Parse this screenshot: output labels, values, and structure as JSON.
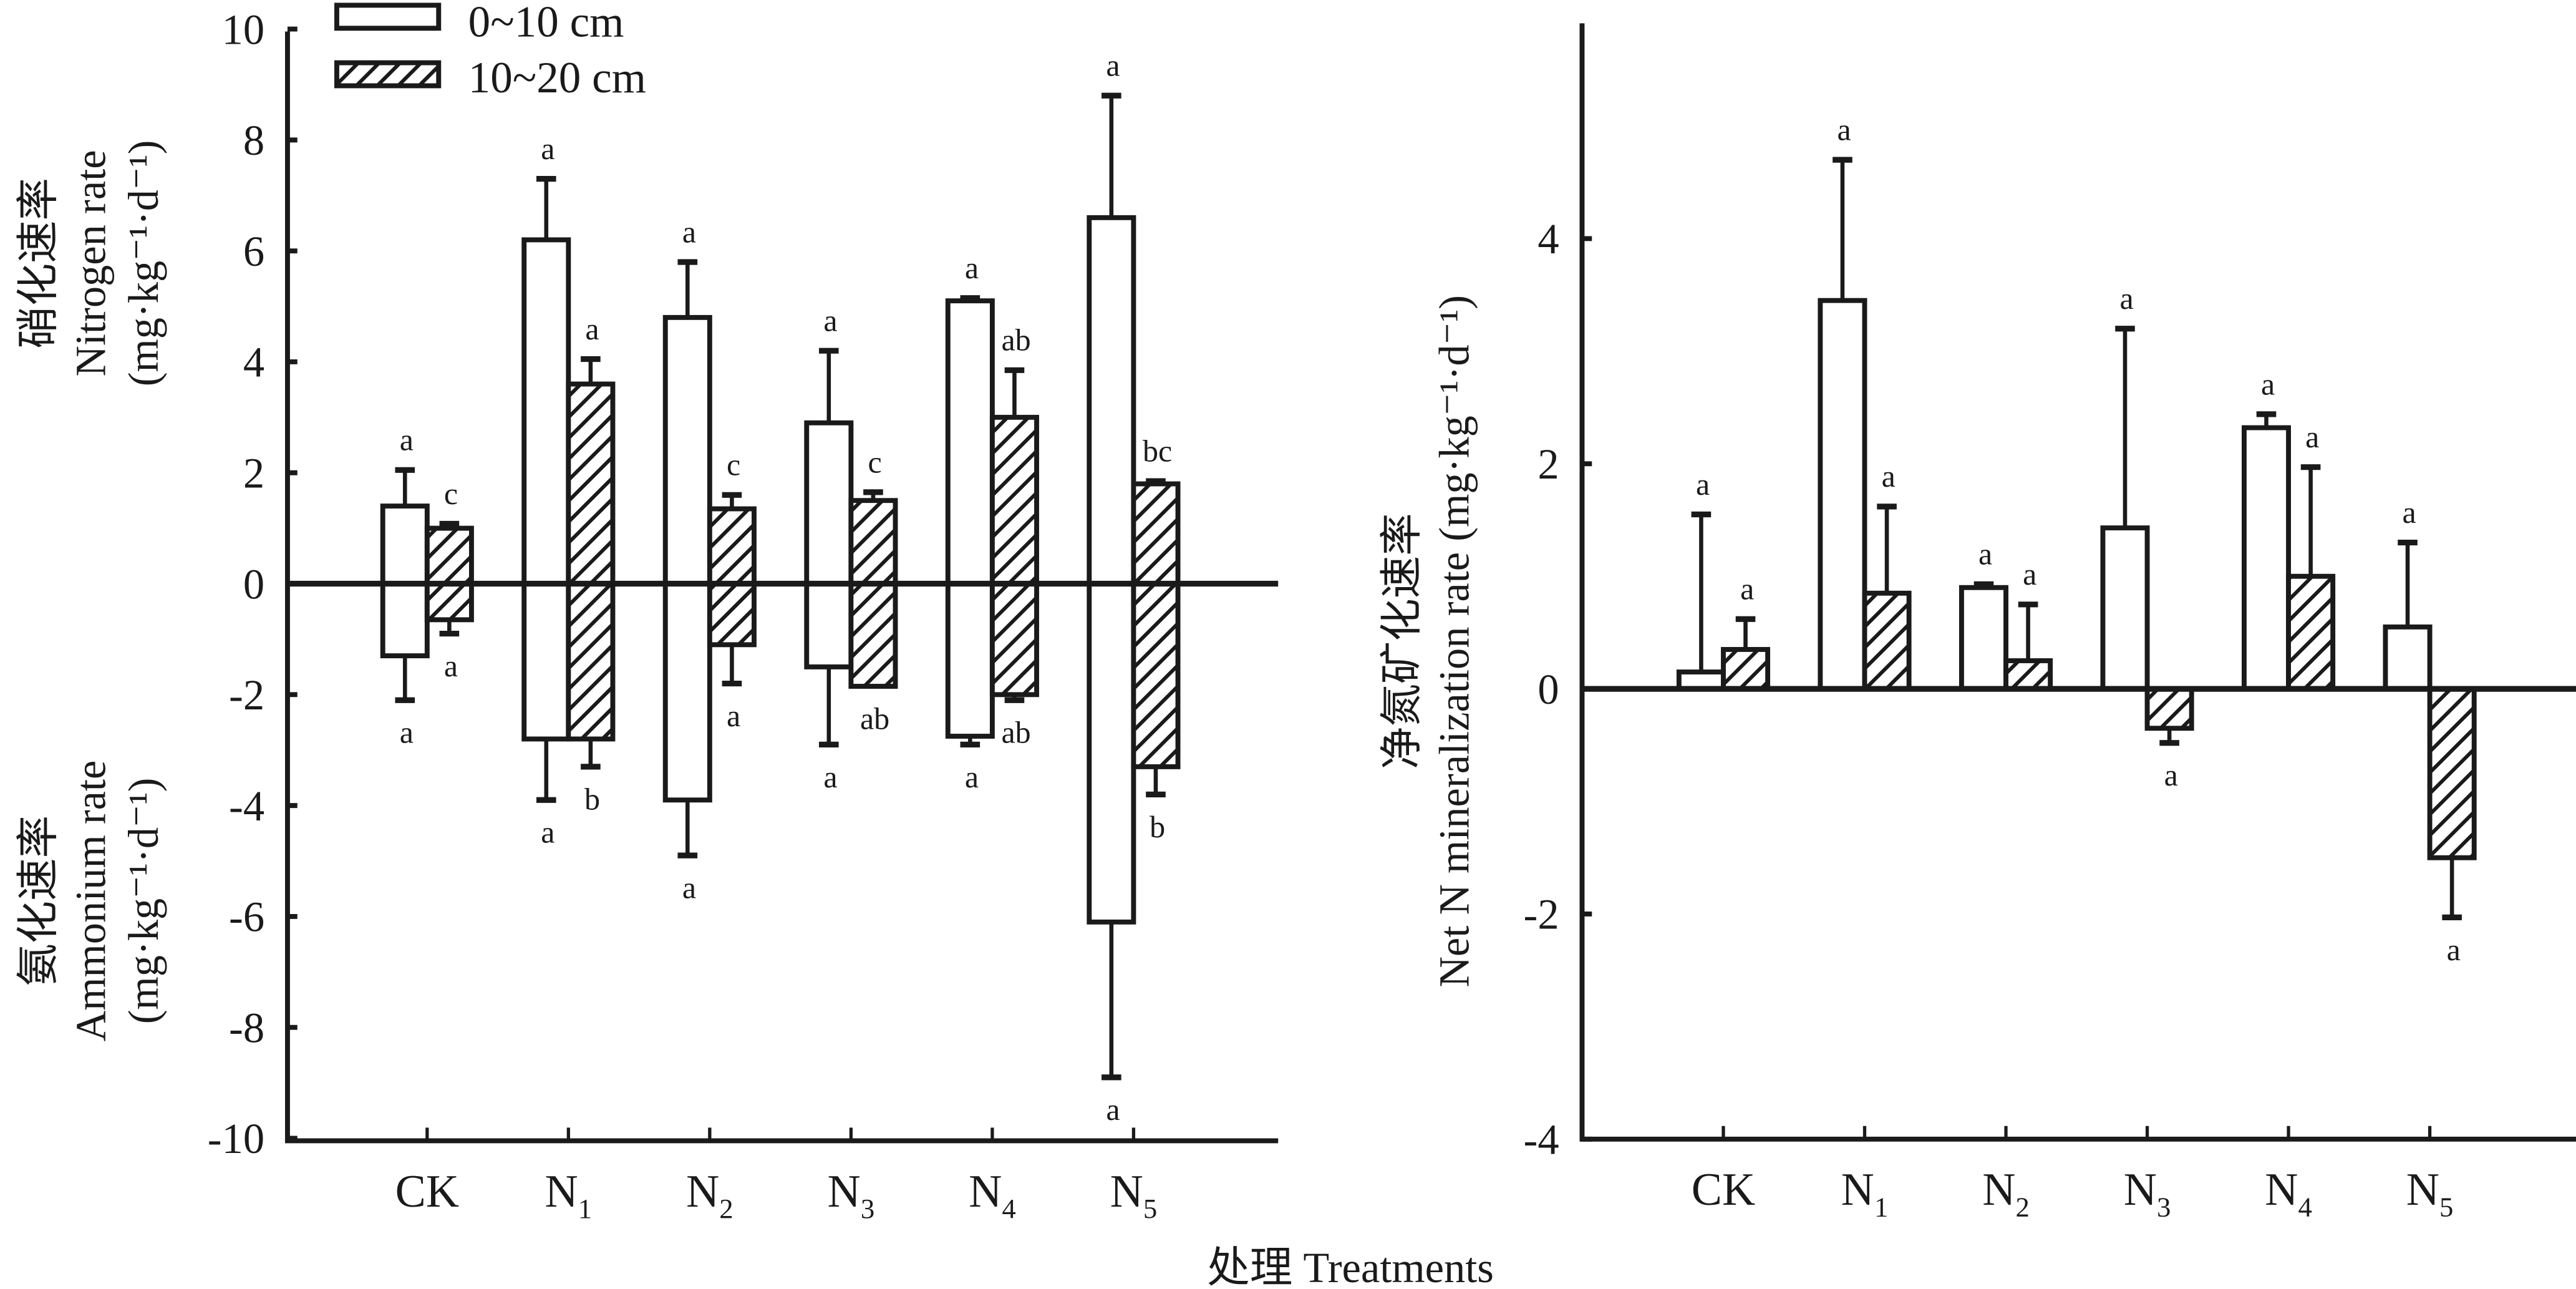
{
  "x_axis_title": "处理 Treatments",
  "legend": [
    {
      "label": "0~10 cm",
      "pattern": "open"
    },
    {
      "label": "10~20 cm",
      "pattern": "hatched"
    }
  ],
  "colors": {
    "ink": "#1a1a1a",
    "fill_open": "#ffffff"
  },
  "chart_data": [
    {
      "type": "bar",
      "title": "",
      "ylabel_top": [
        "硝化速率",
        "Nitrogen rate",
        "(mg·kg⁻¹·d⁻¹)"
      ],
      "ylabel_bottom": [
        "氨化速率",
        "Ammonium rate",
        "(mg·kg⁻¹·d⁻¹)"
      ],
      "xlabel": "处理 Treatments",
      "ylim": [
        -10,
        10
      ],
      "yticks": [
        10,
        8,
        6,
        4,
        2,
        0,
        -2,
        -4,
        -6,
        -8,
        -10
      ],
      "ytick_labels": [
        "10",
        "8",
        "6",
        "4",
        "2",
        "0",
        "-2",
        "-4",
        "-6",
        "-8",
        "-10"
      ],
      "categories": [
        "CK",
        "N1",
        "N2",
        "N3",
        "N4",
        "N5"
      ],
      "category_labels": [
        {
          "main": "CK",
          "sub": ""
        },
        {
          "main": "N",
          "sub": "1"
        },
        {
          "main": "N",
          "sub": "2"
        },
        {
          "main": "N",
          "sub": "3"
        },
        {
          "main": "N",
          "sub": "4"
        },
        {
          "main": "N",
          "sub": "5"
        }
      ],
      "series": [
        {
          "name": "0~10 cm (nitrification, positive)",
          "pattern": "open",
          "values": [
            1.4,
            6.2,
            4.8,
            2.9,
            5.1,
            6.6
          ],
          "error": [
            0.65,
            1.1,
            1.0,
            1.3,
            0.05,
            2.2
          ],
          "letters": [
            "a",
            "a",
            "a",
            "a",
            "a",
            "a"
          ]
        },
        {
          "name": "10~20 cm (nitrification, positive)",
          "pattern": "hatched",
          "values": [
            1.0,
            3.6,
            1.35,
            1.5,
            3.0,
            1.8
          ],
          "error": [
            0.08,
            0.45,
            0.25,
            0.15,
            0.85,
            0.05
          ],
          "letters": [
            "c",
            "a",
            "c",
            "c",
            "ab",
            "bc"
          ]
        },
        {
          "name": "0~10 cm (ammonification, negative)",
          "pattern": "open",
          "values": [
            -1.3,
            -2.8,
            -3.9,
            -1.5,
            -2.75,
            -6.1
          ],
          "error": [
            0.8,
            1.1,
            1.0,
            1.4,
            0.15,
            2.8
          ],
          "letters": [
            "a",
            "a",
            "a",
            "a",
            "a",
            "a"
          ]
        },
        {
          "name": "10~20 cm (ammonification, negative)",
          "pattern": "hatched",
          "values": [
            -0.65,
            -2.8,
            -1.1,
            -1.85,
            -2.0,
            -3.3
          ],
          "error": [
            0.25,
            0.5,
            0.7,
            0.0,
            0.1,
            0.5
          ],
          "letters": [
            "a",
            "b",
            "a",
            "ab",
            "ab",
            "b"
          ]
        }
      ],
      "legend_position": "top-left",
      "grid": false
    },
    {
      "type": "bar",
      "title": "",
      "ylabel": [
        "净氮矿化速率",
        "Net N mineralization rate (mg·kg⁻¹·d⁻¹)"
      ],
      "xlabel": "处理 Treatments",
      "ylim": [
        -4,
        5.2
      ],
      "yticks": [
        4,
        2,
        0,
        -2,
        -4
      ],
      "ytick_labels": [
        "4",
        "2",
        "0",
        "-2",
        "-4"
      ],
      "categories": [
        "CK",
        "N1",
        "N2",
        "N3",
        "N4",
        "N5"
      ],
      "category_labels": [
        {
          "main": "CK",
          "sub": ""
        },
        {
          "main": "N",
          "sub": "1"
        },
        {
          "main": "N",
          "sub": "2"
        },
        {
          "main": "N",
          "sub": "3"
        },
        {
          "main": "N",
          "sub": "4"
        },
        {
          "main": "N",
          "sub": "5"
        }
      ],
      "series": [
        {
          "name": "0~10 cm",
          "pattern": "open",
          "values": [
            0.15,
            3.45,
            0.9,
            1.43,
            2.32,
            0.55
          ],
          "error": [
            1.4,
            1.25,
            0.03,
            1.77,
            0.12,
            0.75
          ],
          "letters": [
            "a",
            "a",
            "a",
            "a",
            "a",
            "a"
          ]
        },
        {
          "name": "10~20 cm",
          "pattern": "hatched",
          "values": [
            0.35,
            0.85,
            0.25,
            -0.35,
            1.0,
            -1.5
          ],
          "error": [
            0.27,
            0.77,
            0.5,
            0.13,
            0.97,
            0.53
          ],
          "letters": [
            "a",
            "a",
            "a",
            "a",
            "a",
            "a"
          ]
        }
      ],
      "grid": false
    }
  ]
}
